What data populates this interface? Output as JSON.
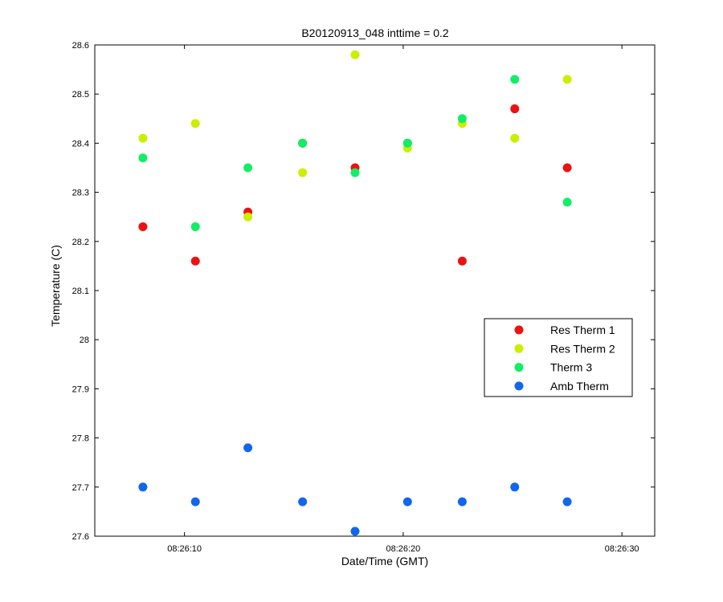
{
  "chart_data": {
    "type": "scatter",
    "title": "B20120913_048 inttime = 0.2",
    "xlabel": "Date/Time (GMT)",
    "ylabel": "Temperature (C)",
    "xlim": [
      "08:26:05.9",
      "08:26:31.5"
    ],
    "ylim": [
      27.6,
      28.6
    ],
    "x_ticks": [
      "08:26:10",
      "08:26:20",
      "08:26:30"
    ],
    "y_ticks": [
      "27.6",
      "27.7",
      "27.8",
      "27.9",
      "28",
      "28.1",
      "28.2",
      "28.3",
      "28.4",
      "28.5",
      "28.6"
    ],
    "grid": false,
    "legend_position": "right",
    "x": [
      "08:26:08.1",
      "08:26:10.5",
      "08:26:12.9",
      "08:26:15.4",
      "08:26:17.8",
      "08:26:20.2",
      "08:26:22.7",
      "08:26:25.1",
      "08:26:27.5"
    ],
    "series": [
      {
        "name": "Res Therm 1",
        "color": "#ee1111",
        "values": [
          28.23,
          28.16,
          28.26,
          28.4,
          28.35,
          28.4,
          28.16,
          28.47,
          28.35
        ]
      },
      {
        "name": "Res Therm 2",
        "color": "#ccee00",
        "values": [
          28.41,
          28.44,
          28.25,
          28.34,
          28.58,
          28.39,
          28.44,
          28.41,
          28.53
        ]
      },
      {
        "name": "Therm 3",
        "color": "#11ee66",
        "values": [
          28.37,
          28.23,
          28.35,
          28.4,
          28.34,
          28.4,
          28.45,
          28.53,
          28.28
        ]
      },
      {
        "name": "Amb Therm",
        "color": "#1166ee",
        "values": [
          27.7,
          27.67,
          27.78,
          27.67,
          27.61,
          27.67,
          27.67,
          27.7,
          27.67
        ]
      }
    ]
  }
}
